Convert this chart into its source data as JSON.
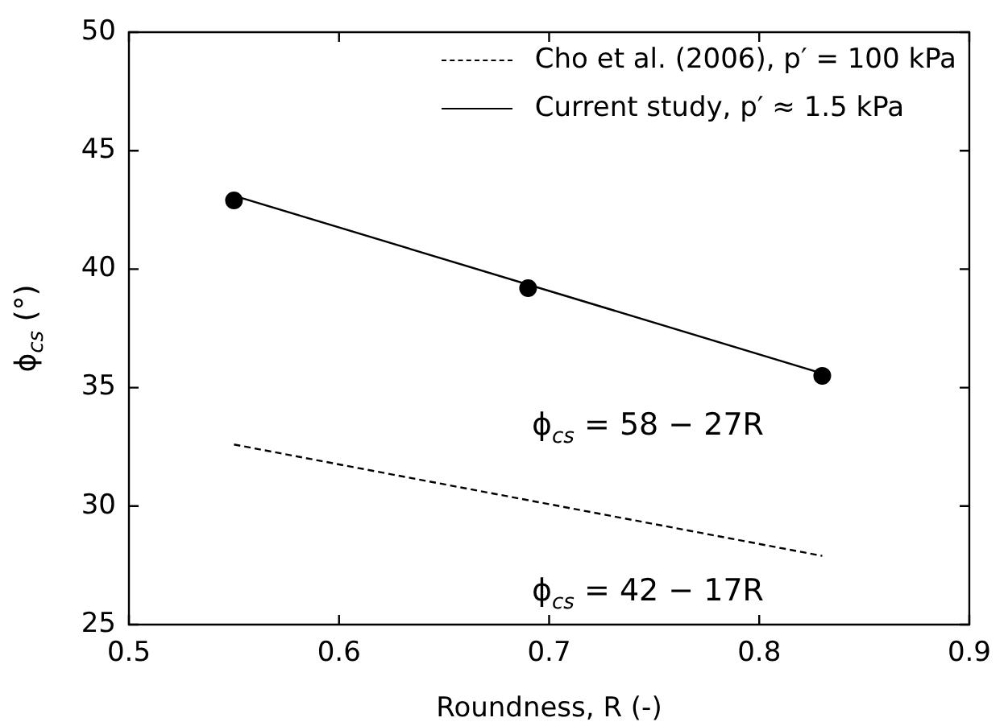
{
  "chart_data": {
    "type": "line",
    "xlabel": "Roundness, R (-)",
    "ylabel": "ϕ$_{cs}$ (°)",
    "xlim": [
      0.5,
      0.9
    ],
    "xticks": [
      0.5,
      0.6,
      0.7,
      0.8,
      0.9
    ],
    "ylim": [
      25,
      50
    ],
    "yticks": [
      25,
      30,
      35,
      40,
      45,
      50
    ],
    "grid": false,
    "legend": "top right",
    "series": [
      {
        "name": "Cho et al. (2006), p′ = 100 kPa",
        "line_style": "dashed",
        "marker": "none",
        "color": "#000000",
        "x": [
          0.55,
          0.83
        ],
        "values": [
          32.6,
          27.9
        ]
      },
      {
        "name": "Current study, p′ ≈ 1.5 kPa",
        "line_style": "solid",
        "marker": "none",
        "color": "#000000",
        "x": [
          0.55,
          0.83
        ],
        "values": [
          43.1,
          35.6
        ]
      },
      {
        "type": "scatter",
        "marker": "circle",
        "color": "#000000",
        "x": [
          0.55,
          0.69,
          0.83
        ],
        "values": [
          42.9,
          39.2,
          35.5
        ]
      }
    ],
    "annotations": [
      "ϕ$_{cs}$ = 58 − 27R",
      "ϕ$_{cs}$ = 42 − 17R"
    ]
  }
}
